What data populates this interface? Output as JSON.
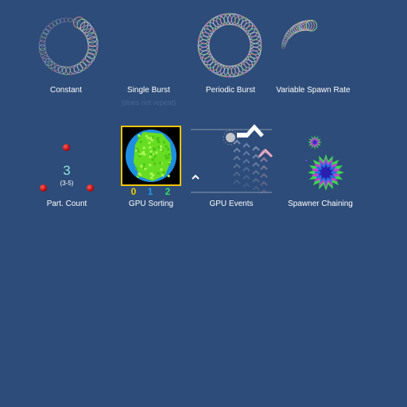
{
  "demos": [
    {
      "label": "Constant",
      "icon": "constant-spiral-icon"
    },
    {
      "label": "Single Burst",
      "sublabel": "(does not repeat)",
      "icon": "single-burst-icon"
    },
    {
      "label": "Periodic Burst",
      "icon": "periodic-burst-ring-icon"
    },
    {
      "label": "Variable Spawn Rate",
      "icon": "variable-rate-arc-icon"
    },
    {
      "label": "Part. Count",
      "count": "3",
      "range": "(3-5)",
      "icon": "particle-dots-icon"
    },
    {
      "label": "GPU Sorting",
      "numbers": [
        "0",
        "1",
        "2"
      ],
      "icon": "sorted-particle-blob-icon"
    },
    {
      "label": "GPU Events",
      "icon": "rising-chevrons-icon"
    },
    {
      "label": "Spawner Chaining",
      "icon": "star-burst-icon"
    }
  ],
  "colors": {
    "background": "#2d4c79",
    "sort_border": "#f0c400",
    "number_0": "#f0d000",
    "number_1": "#1e9be8",
    "number_2": "#38d86a"
  }
}
